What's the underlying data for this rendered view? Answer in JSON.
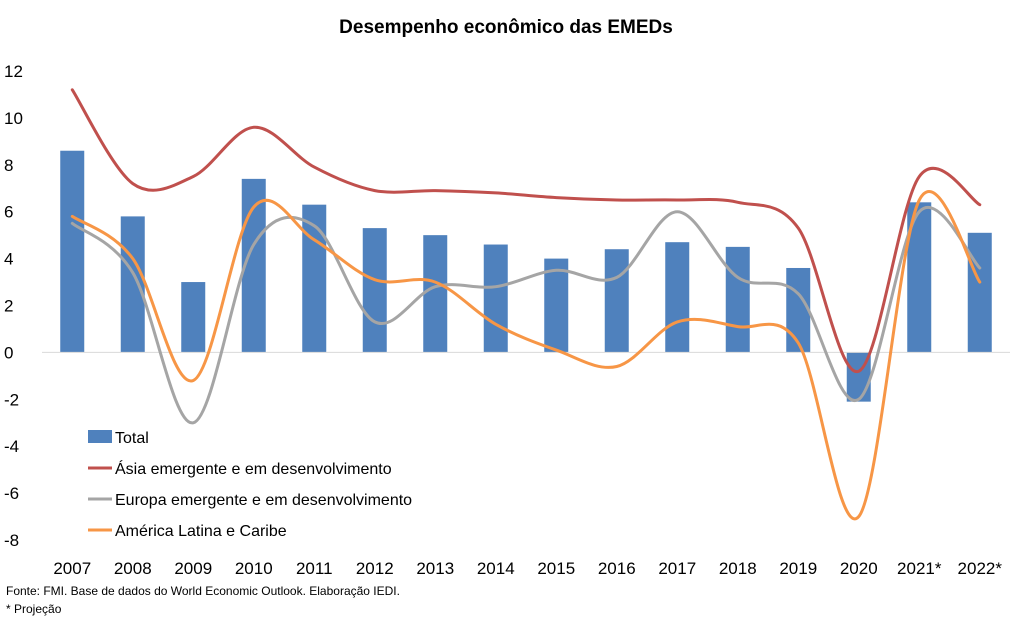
{
  "chart_data": {
    "type": "bar",
    "title": "Desempenho econômico das EMEDs",
    "categories": [
      "2007",
      "2008",
      "2009",
      "2010",
      "2011",
      "2012",
      "2013",
      "2014",
      "2015",
      "2016",
      "2017",
      "2018",
      "2019",
      "2020",
      "2021*",
      "2022*"
    ],
    "ylim": [
      -8,
      12
    ],
    "yticks": [
      12,
      10,
      8,
      6,
      4,
      2,
      0,
      -2,
      -4,
      -6,
      -8
    ],
    "grid": false,
    "legend_position": "bottom-left",
    "series": [
      {
        "name": "Total",
        "type": "bar",
        "color": "#4f81bd",
        "values": [
          8.6,
          5.8,
          3.0,
          7.4,
          6.3,
          5.3,
          5.0,
          4.6,
          4.0,
          4.4,
          4.7,
          4.5,
          3.6,
          -2.1,
          6.4,
          5.1
        ]
      },
      {
        "name": "Ásia emergente e em desenvolvimento",
        "type": "line",
        "color": "#c0504d",
        "values": [
          11.2,
          7.2,
          7.5,
          9.6,
          7.9,
          6.9,
          6.9,
          6.8,
          6.6,
          6.5,
          6.5,
          6.4,
          5.3,
          -0.8,
          7.5,
          6.3
        ]
      },
      {
        "name": "Europa emergente e em desenvolvimento",
        "type": "line",
        "color": "#a5a5a5",
        "values": [
          5.5,
          3.4,
          -3.0,
          4.6,
          5.4,
          1.3,
          2.8,
          2.8,
          3.5,
          3.2,
          6.0,
          3.2,
          2.5,
          -2.0,
          6.0,
          3.6
        ]
      },
      {
        "name": "América Latina e Caribe",
        "type": "line",
        "color": "#f79646",
        "values": [
          5.8,
          4.0,
          -1.2,
          6.2,
          4.8,
          3.1,
          3.0,
          1.2,
          0.1,
          -0.6,
          1.3,
          1.1,
          0.4,
          -7.0,
          6.5,
          3.0
        ]
      }
    ]
  },
  "footnotes": {
    "source": "Fonte: FMI. Base de dados do World Economic Outlook. Elaboração IEDI.",
    "projection": "* Projeção"
  }
}
